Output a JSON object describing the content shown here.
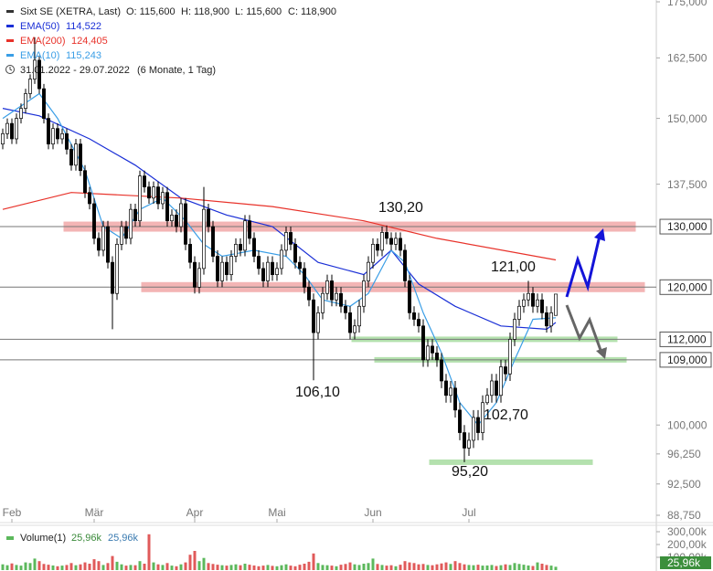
{
  "chart_data": [
    {
      "type": "candlestick",
      "title": "Sixt SE (XETRA, Last)",
      "ohlc_labels": [
        "O: 115,600",
        "H: 118,900",
        "L: 115,600",
        "C: 118,900"
      ],
      "date_range": "31.01.2022 - 29.07.2022",
      "period": "(6 Monate, 1 Tag)",
      "log_scale": true,
      "xlim": [
        -0.6,
        143
      ],
      "xticks": [
        {
          "value": 2,
          "label": "Feb"
        },
        {
          "value": 20,
          "label": "Mär"
        },
        {
          "value": 42,
          "label": "Apr"
        },
        {
          "value": 60,
          "label": "Mai"
        },
        {
          "value": 81,
          "label": "Jun"
        },
        {
          "value": 102,
          "label": "Jul"
        }
      ],
      "ylim": [
        88.75,
        175
      ],
      "yticks": [
        {
          "value": 88.75,
          "label": "88,750"
        },
        {
          "value": 92.5,
          "label": "92,500"
        },
        {
          "value": 96.25,
          "label": "96,250"
        },
        {
          "value": 100,
          "label": "100,000"
        },
        {
          "value": 137.5,
          "label": "137,500"
        },
        {
          "value": 150,
          "label": "150,000"
        },
        {
          "value": 162.5,
          "label": "162,500"
        },
        {
          "value": 175,
          "label": "175,000"
        }
      ],
      "up_color": "#ffffff",
      "down_color": "#000000",
      "open": [
        145,
        147,
        149,
        146,
        150,
        152,
        155,
        158,
        162,
        156,
        150,
        145,
        148,
        146,
        147,
        144,
        141,
        145,
        140,
        136,
        134,
        128,
        126,
        130,
        124,
        119,
        127,
        130,
        128,
        133,
        131,
        139,
        137,
        135,
        137,
        134,
        136,
        131,
        132,
        130,
        134,
        127,
        124,
        120,
        123,
        133,
        130,
        125,
        121,
        124,
        122,
        125,
        127,
        126,
        131,
        128,
        125,
        123,
        121,
        124,
        122,
        123,
        126,
        129,
        127,
        124,
        123,
        120,
        118,
        113,
        116,
        119,
        121,
        118,
        119,
        117,
        116,
        113,
        114,
        117,
        121,
        124,
        127,
        126,
        129,
        128,
        127,
        128,
        126,
        121,
        116,
        115,
        114,
        109,
        111,
        110,
        109,
        106,
        104,
        105,
        102,
        99,
        97,
        98,
        101,
        99,
        103,
        104,
        106,
        104,
        108,
        107,
        112,
        115,
        117,
        118,
        119,
        117,
        118,
        116,
        114,
        115.6
      ],
      "high": [
        148,
        150,
        150,
        151,
        153,
        156,
        159,
        167,
        163,
        157,
        151,
        149,
        149,
        148,
        148,
        145,
        146,
        146,
        141,
        137,
        135,
        129,
        131,
        131,
        125,
        128,
        131,
        131,
        134,
        134,
        140,
        140,
        138,
        138,
        138,
        137,
        137,
        133,
        133,
        135,
        135,
        128,
        125,
        124,
        137,
        134,
        131,
        126,
        125,
        125,
        126,
        128,
        128,
        132,
        132,
        129,
        126,
        124,
        125,
        125,
        124,
        127,
        130,
        130,
        128,
        125,
        124,
        121,
        119,
        117,
        120,
        122,
        122,
        120,
        120,
        118,
        117,
        115,
        118,
        122,
        125,
        128,
        128,
        130,
        130.2,
        129,
        129,
        129,
        127,
        122,
        117,
        116,
        115,
        112,
        112,
        111,
        110,
        107,
        106,
        106,
        103,
        100,
        99,
        102,
        102,
        104,
        105,
        107,
        107,
        109,
        109,
        113,
        116,
        118,
        119,
        121,
        120,
        119,
        119,
        117,
        117,
        118.9
      ],
      "low": [
        144,
        146,
        145,
        145,
        149,
        151,
        154,
        157,
        155,
        149,
        144,
        144,
        145,
        145,
        143,
        140,
        140,
        139,
        135,
        133,
        127,
        125,
        125,
        123,
        113.5,
        118,
        126,
        127,
        127,
        130,
        130,
        136,
        134,
        134,
        133,
        133,
        130,
        130,
        129,
        129,
        126,
        123,
        119,
        119,
        122,
        129,
        124,
        120,
        120,
        121,
        121,
        124,
        125,
        125,
        127,
        124,
        122,
        120,
        120,
        121,
        121,
        122,
        125,
        126,
        123,
        122,
        119,
        117,
        106.1,
        112,
        115,
        118,
        117,
        117,
        116,
        115,
        112,
        112,
        113,
        116,
        120,
        123,
        125,
        125,
        127,
        126,
        126,
        125,
        120,
        115,
        114,
        113,
        108,
        108,
        109,
        108,
        105,
        103,
        103,
        101,
        98,
        95.2,
        96,
        97,
        98,
        98,
        102.7,
        103,
        103,
        103,
        106,
        106,
        111,
        114,
        116,
        117,
        116,
        116,
        115,
        113,
        113,
        115.6
      ],
      "close": [
        147,
        149,
        146,
        150,
        152,
        155,
        158,
        162,
        156,
        150,
        145,
        148,
        146,
        147,
        144,
        141,
        145,
        140,
        136,
        134,
        128,
        126,
        130,
        124,
        119,
        127,
        130,
        128,
        133,
        131,
        139,
        137,
        135,
        137,
        134,
        136,
        131,
        132,
        130,
        134,
        127,
        124,
        120,
        123,
        133,
        130,
        125,
        121,
        124,
        122,
        125,
        127,
        126,
        131,
        128,
        125,
        123,
        121,
        124,
        122,
        123,
        126,
        129,
        127,
        124,
        123,
        120,
        118,
        113,
        116,
        119,
        121,
        118,
        119,
        117,
        116,
        113,
        114,
        117,
        121,
        124,
        127,
        126,
        129,
        128,
        127,
        128,
        126,
        121,
        116,
        115,
        114,
        109,
        111,
        110,
        109,
        106,
        104,
        105,
        102,
        99,
        97,
        98,
        101,
        99,
        103,
        104,
        106,
        104,
        108,
        107,
        112,
        115,
        117,
        118,
        119,
        117,
        118,
        116,
        114,
        116,
        118.9
      ],
      "series": [
        {
          "name": "EMA(50)",
          "color": "#1a2fd6",
          "last_label": "114,522",
          "x": [
            0,
            8,
            19,
            29,
            39,
            49,
            59,
            69,
            79,
            85,
            91,
            99,
            109,
            119,
            121
          ],
          "values": [
            152,
            150.5,
            146,
            141,
            135,
            132,
            130,
            124,
            122,
            126,
            120.5,
            117,
            114,
            113.5,
            114.522
          ]
        },
        {
          "name": "EMA(200)",
          "color": "#e8322a",
          "last_label": "124,405",
          "x": [
            0,
            15,
            39,
            59,
            79,
            95,
            121
          ],
          "values": [
            133,
            136,
            135,
            133.5,
            131,
            128,
            124.405
          ]
        },
        {
          "name": "EMA(10)",
          "color": "#3a9ee6",
          "last_label": "115,243",
          "x": [
            0,
            8,
            12,
            18,
            22,
            26,
            30,
            35,
            40,
            44,
            48,
            55,
            62,
            66,
            70,
            76,
            80,
            85,
            88,
            92,
            96,
            100,
            104,
            108,
            112,
            116,
            121
          ],
          "values": [
            150,
            155,
            150,
            140,
            130,
            128,
            133,
            135,
            131,
            127,
            125,
            126,
            125,
            122,
            118,
            117,
            119,
            126,
            124,
            116,
            110,
            103,
            100,
            103,
            109,
            115,
            115.243
          ]
        }
      ],
      "hlines": [
        {
          "value": 130,
          "label": "130,000"
        },
        {
          "value": 120,
          "label": "120,000"
        },
        {
          "value": 112,
          "label": "112,000"
        },
        {
          "value": 109,
          "label": "109,000"
        }
      ],
      "zones": [
        {
          "value": 130,
          "color": "#f2a9a9"
        },
        {
          "value": 120,
          "color": "#f2a9a9"
        },
        {
          "value": 112,
          "color": "#a8dca0"
        },
        {
          "value": 109,
          "color": "#a8dca0"
        },
        {
          "value": 95.2,
          "color": "#a8dca0"
        }
      ],
      "annotations": [
        "130,20",
        "121,00",
        "106,10",
        "102,70",
        "95,20"
      ]
    },
    {
      "type": "bar",
      "title": "Volume(1)",
      "legend_values": [
        "25,96k",
        "25,96k"
      ],
      "up_color": "#5cb85c",
      "down_color": "#e05a5a",
      "ylim": [
        0,
        300
      ],
      "yticks": [
        {
          "value": 100,
          "label": "100,00k"
        },
        {
          "value": 200,
          "label": "200,00k"
        },
        {
          "value": 300,
          "label": "300,00k"
        }
      ],
      "last_marker": {
        "value": 25.96,
        "label": "25,96k"
      },
      "values": [
        45,
        38,
        52,
        40,
        35,
        60,
        55,
        90,
        70,
        48,
        42,
        36,
        30,
        35,
        40,
        55,
        38,
        45,
        60,
        50,
        85,
        70,
        40,
        55,
        110,
        65,
        45,
        35,
        40,
        38,
        70,
        50,
        280,
        60,
        45,
        40,
        55,
        35,
        30,
        45,
        60,
        120,
        150,
        70,
        95,
        55,
        48,
        42,
        38,
        35,
        40,
        45,
        38,
        50,
        42,
        36,
        30,
        35,
        40,
        33,
        30,
        38,
        45,
        35,
        30,
        42,
        50,
        65,
        130,
        55,
        40,
        38,
        35,
        30,
        42,
        48,
        60,
        45,
        40,
        50,
        55,
        90,
        48,
        40,
        35,
        38,
        30,
        42,
        70,
        60,
        55,
        45,
        48,
        40,
        38,
        45,
        52,
        60,
        48,
        70,
        55,
        45,
        40,
        38,
        42,
        35,
        36,
        40,
        32,
        38,
        45,
        40,
        55,
        48,
        42,
        36,
        32,
        60,
        50,
        40,
        35,
        25.96
      ]
    }
  ]
}
